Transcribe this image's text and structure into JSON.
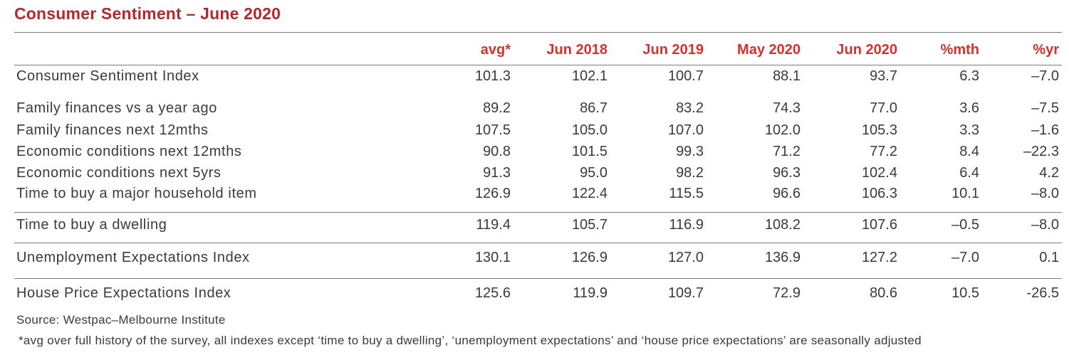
{
  "title": "Consumer Sentiment – June 2020",
  "columns": [
    "avg*",
    "Jun 2018",
    "Jun 2019",
    "May 2020",
    "Jun 2020",
    "%mth",
    "%yr"
  ],
  "rows": [
    {
      "label": "Consumer Sentiment Index",
      "values": [
        "101.3",
        "102.1",
        "100.7",
        "88.1",
        "93.7",
        "6.3",
        "–7.0"
      ]
    },
    {
      "label": "Family finances vs a year ago",
      "values": [
        "89.2",
        "86.7",
        "83.2",
        "74.3",
        "77.0",
        "3.6",
        "–7.5"
      ]
    },
    {
      "label": "Family finances next 12mths",
      "values": [
        "107.5",
        "105.0",
        "107.0",
        "102.0",
        "105.3",
        "3.3",
        "–1.6"
      ]
    },
    {
      "label": "Economic conditions next 12mths",
      "values": [
        "90.8",
        "101.5",
        "99.3",
        "71.2",
        "77.2",
        "8.4",
        "–22.3"
      ]
    },
    {
      "label": "Economic conditions next 5yrs",
      "values": [
        "91.3",
        "95.0",
        "98.2",
        "96.3",
        "102.4",
        "6.4",
        "4.2"
      ]
    },
    {
      "label": "Time to buy a major household item",
      "values": [
        "126.9",
        "122.4",
        "115.5",
        "96.6",
        "106.3",
        "10.1",
        "–8.0"
      ]
    },
    {
      "label": "Time to buy a dwelling",
      "values": [
        "119.4",
        "105.7",
        "116.9",
        "108.2",
        "107.6",
        "–0.5",
        "–8.0"
      ]
    },
    {
      "label": "Unemployment Expectations Index",
      "values": [
        "130.1",
        "126.9",
        "127.0",
        "136.9",
        "127.2",
        "–7.0",
        "0.1"
      ]
    },
    {
      "label": "House Price Expectations Index",
      "values": [
        "125.6",
        "119.9",
        "109.7",
        "72.9",
        "80.6",
        "10.5",
        "-26.5"
      ]
    }
  ],
  "source": "Source: Westpac–Melbourne Institute",
  "footnote": "*avg over full history of the survey, all indexes except ‘time to buy a dwelling’, ‘unemployment expectations’ and ‘house price expectations’ are seasonally adjusted"
}
